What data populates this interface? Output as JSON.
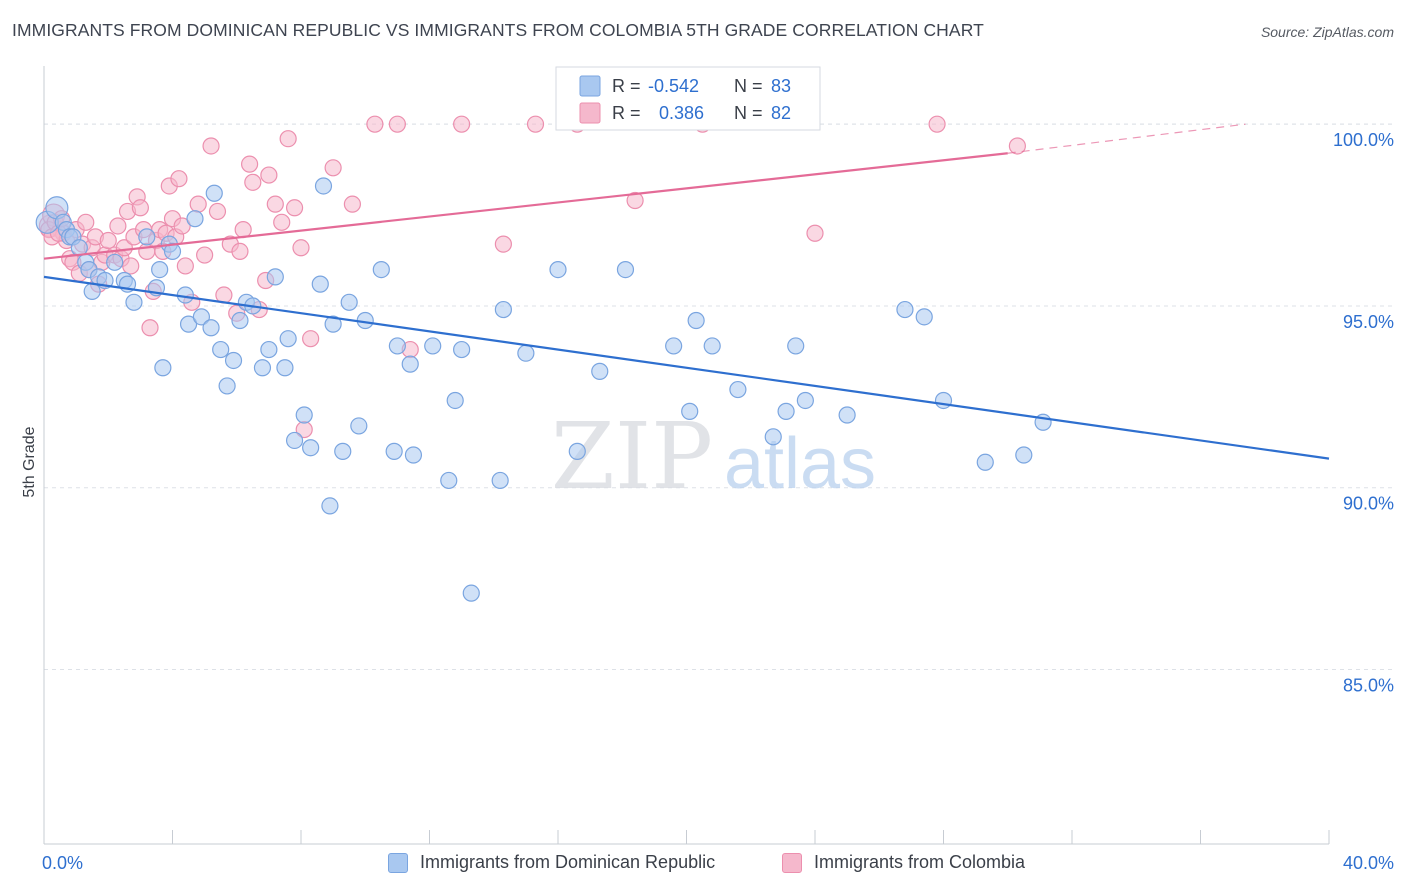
{
  "title": "IMMIGRANTS FROM DOMINICAN REPUBLIC VS IMMIGRANTS FROM COLOMBIA 5TH GRADE CORRELATION CHART",
  "source": "Source: ZipAtlas.com",
  "watermark": {
    "zip": "ZIP",
    "atlas": "atlas"
  },
  "colors": {
    "blue_fill": "#a9c8f0",
    "blue_stroke": "#7aa5e0",
    "blue_line": "#2e6fcf",
    "pink_fill": "#f5b8cc",
    "pink_stroke": "#ec8fae",
    "pink_line": "#e46b97",
    "value_text": "#2e6fcf",
    "grid": "#dde1e7"
  },
  "legend_box": {
    "rows": [
      {
        "r_label": "R =",
        "r_value": "-0.542",
        "n_label": "N =",
        "n_value": "83"
      },
      {
        "r_label": "R =",
        "r_value": "0.386",
        "n_label": "N =",
        "n_value": "82"
      }
    ]
  },
  "chart_data": {
    "type": "scatter",
    "title": "IMMIGRANTS FROM DOMINICAN REPUBLIC VS IMMIGRANTS FROM COLOMBIA 5TH GRADE CORRELATION CHART",
    "xlabel": "",
    "ylabel": "5th Grade",
    "xlim": [
      0,
      40
    ],
    "ylim": [
      80.2,
      101.6
    ],
    "x_tick_labels": [
      "0.0%",
      "40.0%"
    ],
    "y_ticks": [
      85,
      90,
      95,
      100
    ],
    "y_tick_labels": [
      "85.0%",
      "90.0%",
      "95.0%",
      "100.0%"
    ],
    "grid": true,
    "legend_position": "bottom",
    "series": [
      {
        "name": "Immigrants from Dominican Republic",
        "R": -0.542,
        "N": 83,
        "trend": {
          "x": [
            0,
            40
          ],
          "y": [
            95.8,
            90.8
          ],
          "dashed_from": null
        },
        "points": [
          [
            0.1,
            97.3
          ],
          [
            0.4,
            97.7
          ],
          [
            0.6,
            97.3
          ],
          [
            0.7,
            97.1
          ],
          [
            0.8,
            96.9
          ],
          [
            0.9,
            96.9
          ],
          [
            1.1,
            96.6
          ],
          [
            1.3,
            96.2
          ],
          [
            1.4,
            96.0
          ],
          [
            1.5,
            95.4
          ],
          [
            1.7,
            95.8
          ],
          [
            1.9,
            95.7
          ],
          [
            2.2,
            96.2
          ],
          [
            2.5,
            95.7
          ],
          [
            2.6,
            95.6
          ],
          [
            2.8,
            95.1
          ],
          [
            3.2,
            96.9
          ],
          [
            3.5,
            95.5
          ],
          [
            3.6,
            96.0
          ],
          [
            3.7,
            93.3
          ],
          [
            3.9,
            96.7
          ],
          [
            4.0,
            96.5
          ],
          [
            4.4,
            95.3
          ],
          [
            4.5,
            94.5
          ],
          [
            4.7,
            97.4
          ],
          [
            4.9,
            94.7
          ],
          [
            5.2,
            94.4
          ],
          [
            5.3,
            98.1
          ],
          [
            5.5,
            93.8
          ],
          [
            5.7,
            92.8
          ],
          [
            5.9,
            93.5
          ],
          [
            6.1,
            94.6
          ],
          [
            6.3,
            95.1
          ],
          [
            6.5,
            95.0
          ],
          [
            6.8,
            93.3
          ],
          [
            7.0,
            93.8
          ],
          [
            7.2,
            95.8
          ],
          [
            7.5,
            93.3
          ],
          [
            7.6,
            94.1
          ],
          [
            7.8,
            91.3
          ],
          [
            8.1,
            92.0
          ],
          [
            8.3,
            91.1
          ],
          [
            8.6,
            95.6
          ],
          [
            8.7,
            98.3
          ],
          [
            8.9,
            89.5
          ],
          [
            9.0,
            94.5
          ],
          [
            9.3,
            91.0
          ],
          [
            9.5,
            95.1
          ],
          [
            9.8,
            91.7
          ],
          [
            10.0,
            94.6
          ],
          [
            10.5,
            96.0
          ],
          [
            10.9,
            91.0
          ],
          [
            11.0,
            93.9
          ],
          [
            11.4,
            93.4
          ],
          [
            11.5,
            90.9
          ],
          [
            12.1,
            93.9
          ],
          [
            12.6,
            90.2
          ],
          [
            12.8,
            92.4
          ],
          [
            13.0,
            93.8
          ],
          [
            13.3,
            87.1
          ],
          [
            14.2,
            90.2
          ],
          [
            14.3,
            94.9
          ],
          [
            15.0,
            93.7
          ],
          [
            16.0,
            96.0
          ],
          [
            16.6,
            91.0
          ],
          [
            17.3,
            93.2
          ],
          [
            18.1,
            96.0
          ],
          [
            19.6,
            93.9
          ],
          [
            20.1,
            92.1
          ],
          [
            20.3,
            94.6
          ],
          [
            20.8,
            93.9
          ],
          [
            21.6,
            92.7
          ],
          [
            22.7,
            91.4
          ],
          [
            23.1,
            92.1
          ],
          [
            23.4,
            93.9
          ],
          [
            23.7,
            92.4
          ],
          [
            25.0,
            92.0
          ],
          [
            26.8,
            94.9
          ],
          [
            27.4,
            94.7
          ],
          [
            28.0,
            92.4
          ],
          [
            29.3,
            90.7
          ],
          [
            30.5,
            90.9
          ],
          [
            31.1,
            91.8
          ]
        ]
      },
      {
        "name": "Immigrants from Colombia",
        "R": 0.386,
        "N": 82,
        "trend": {
          "x": [
            0,
            30,
            37.4
          ],
          "y": [
            96.3,
            99.2,
            100.0
          ],
          "dashed_from": 30
        },
        "points": [
          [
            0.2,
            97.2
          ],
          [
            0.3,
            97.5
          ],
          [
            0.5,
            97.1
          ],
          [
            0.6,
            97.0
          ],
          [
            0.7,
            96.8
          ],
          [
            0.8,
            96.3
          ],
          [
            0.9,
            96.2
          ],
          [
            1.0,
            97.1
          ],
          [
            1.1,
            95.9
          ],
          [
            1.2,
            96.7
          ],
          [
            1.3,
            97.3
          ],
          [
            1.4,
            96.0
          ],
          [
            1.5,
            96.6
          ],
          [
            1.6,
            96.9
          ],
          [
            1.7,
            95.6
          ],
          [
            1.8,
            96.2
          ],
          [
            1.9,
            96.4
          ],
          [
            2.0,
            96.8
          ],
          [
            2.2,
            96.4
          ],
          [
            2.3,
            97.2
          ],
          [
            2.4,
            96.3
          ],
          [
            2.5,
            96.6
          ],
          [
            2.6,
            97.6
          ],
          [
            2.7,
            96.1
          ],
          [
            2.8,
            96.9
          ],
          [
            2.9,
            98.0
          ],
          [
            3.0,
            97.7
          ],
          [
            3.1,
            97.1
          ],
          [
            3.2,
            96.5
          ],
          [
            3.3,
            94.4
          ],
          [
            3.4,
            95.4
          ],
          [
            3.5,
            96.8
          ],
          [
            3.6,
            97.1
          ],
          [
            3.7,
            96.5
          ],
          [
            3.8,
            97.0
          ],
          [
            3.9,
            98.3
          ],
          [
            4.0,
            97.4
          ],
          [
            4.1,
            96.9
          ],
          [
            4.2,
            98.5
          ],
          [
            4.3,
            97.2
          ],
          [
            4.4,
            96.1
          ],
          [
            4.6,
            95.1
          ],
          [
            4.8,
            97.8
          ],
          [
            5.0,
            96.4
          ],
          [
            5.2,
            99.4
          ],
          [
            5.4,
            97.6
          ],
          [
            5.6,
            95.3
          ],
          [
            5.8,
            96.7
          ],
          [
            6.0,
            94.8
          ],
          [
            6.1,
            96.5
          ],
          [
            6.2,
            97.1
          ],
          [
            6.4,
            98.9
          ],
          [
            6.5,
            98.4
          ],
          [
            6.7,
            94.9
          ],
          [
            6.9,
            95.7
          ],
          [
            7.0,
            98.6
          ],
          [
            7.2,
            97.8
          ],
          [
            7.4,
            97.3
          ],
          [
            7.6,
            99.6
          ],
          [
            7.8,
            97.7
          ],
          [
            8.0,
            96.6
          ],
          [
            8.1,
            91.6
          ],
          [
            8.3,
            94.1
          ],
          [
            9.0,
            98.8
          ],
          [
            9.6,
            97.8
          ],
          [
            10.3,
            100.0
          ],
          [
            11.0,
            100.0
          ],
          [
            11.4,
            93.8
          ],
          [
            13.0,
            100.0
          ],
          [
            14.3,
            96.7
          ],
          [
            15.3,
            100.0
          ],
          [
            16.6,
            100.0
          ],
          [
            18.4,
            97.9
          ],
          [
            20.5,
            100.0
          ],
          [
            24.0,
            97.0
          ],
          [
            27.8,
            100.0
          ],
          [
            30.3,
            99.4
          ],
          [
            0.15,
            97.1
          ],
          [
            0.25,
            96.9
          ],
          [
            0.35,
            97.3
          ],
          [
            0.45,
            97.0
          ],
          [
            0.55,
            97.4
          ]
        ]
      }
    ]
  }
}
